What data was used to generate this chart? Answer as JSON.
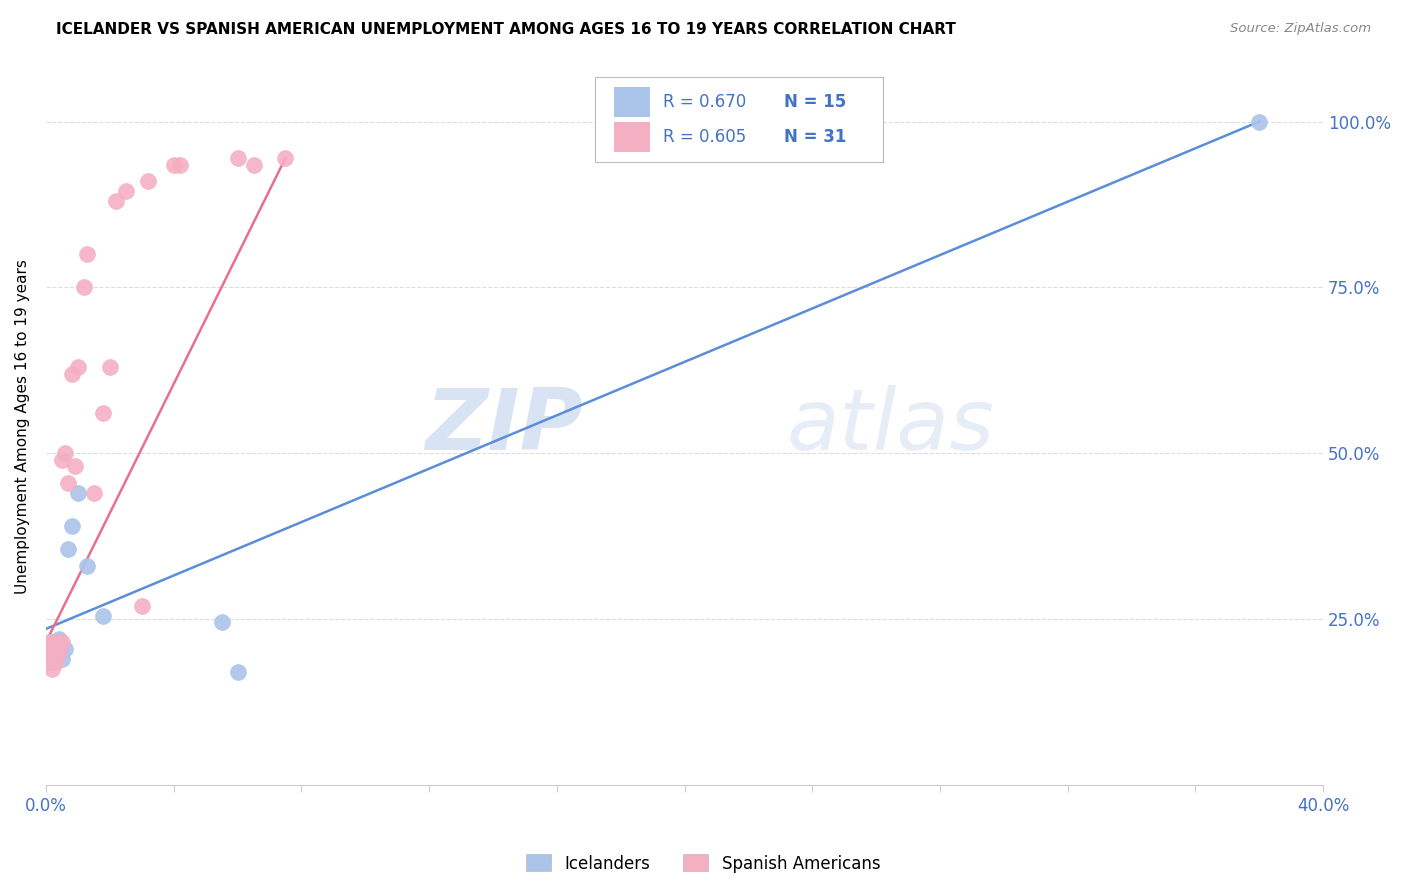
{
  "title": "ICELANDER VS SPANISH AMERICAN UNEMPLOYMENT AMONG AGES 16 TO 19 YEARS CORRELATION CHART",
  "source": "Source: ZipAtlas.com",
  "ylabel": "Unemployment Among Ages 16 to 19 years",
  "xlim": [
    0.0,
    0.4
  ],
  "ylim": [
    0.0,
    1.08
  ],
  "watermark_zip": "ZIP",
  "watermark_atlas": "atlas",
  "legend_blue_R": "R = 0.670",
  "legend_blue_N": "N = 15",
  "legend_pink_R": "R = 0.605",
  "legend_pink_N": "N = 31",
  "icelander_color": "#aac4ea",
  "spanish_color": "#f4afc3",
  "blue_line_color": "#5b8dd9",
  "pink_line_color": "#e8708a",
  "blue_text_color": "#4472c4",
  "icelanders_x": [
    0.001,
    0.002,
    0.002,
    0.003,
    0.004,
    0.005,
    0.006,
    0.007,
    0.008,
    0.01,
    0.013,
    0.018,
    0.055,
    0.06,
    0.38
  ],
  "icelanders_y": [
    0.195,
    0.185,
    0.215,
    0.195,
    0.22,
    0.19,
    0.205,
    0.355,
    0.39,
    0.44,
    0.33,
    0.255,
    0.245,
    0.17,
    1.0
  ],
  "spanish_x": [
    0.001,
    0.001,
    0.001,
    0.002,
    0.002,
    0.002,
    0.003,
    0.003,
    0.004,
    0.004,
    0.005,
    0.005,
    0.006,
    0.007,
    0.008,
    0.009,
    0.01,
    0.012,
    0.013,
    0.015,
    0.018,
    0.02,
    0.022,
    0.025,
    0.03,
    0.032,
    0.04,
    0.042,
    0.06,
    0.065,
    0.075
  ],
  "spanish_y": [
    0.185,
    0.195,
    0.215,
    0.175,
    0.195,
    0.21,
    0.185,
    0.2,
    0.2,
    0.215,
    0.215,
    0.49,
    0.5,
    0.455,
    0.62,
    0.48,
    0.63,
    0.75,
    0.8,
    0.44,
    0.56,
    0.63,
    0.88,
    0.895,
    0.27,
    0.91,
    0.935,
    0.935,
    0.945,
    0.935,
    0.945
  ],
  "blue_line_x": [
    0.0,
    0.38
  ],
  "blue_line_y": [
    0.235,
    1.0
  ],
  "pink_line_x": [
    0.0,
    0.075
  ],
  "pink_line_y": [
    0.215,
    0.945
  ],
  "grid_color": "#dddddd",
  "spine_color": "#cccccc",
  "tick_color": "#4472c4"
}
